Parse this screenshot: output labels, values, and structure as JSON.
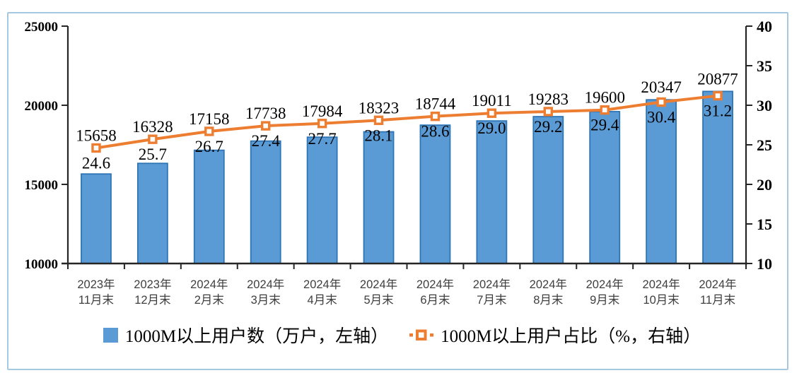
{
  "panel": {
    "background": "#FFFFFF",
    "border_color": "#A6C9E2"
  },
  "chart_data": {
    "type": "bar+line",
    "title": "",
    "categories": [
      [
        "2023年",
        "11月末"
      ],
      [
        "2023年",
        "12月末"
      ],
      [
        "2024年",
        "2月末"
      ],
      [
        "2024年",
        "3月末"
      ],
      [
        "2024年",
        "4月末"
      ],
      [
        "2024年",
        "5月末"
      ],
      [
        "2024年",
        "6月末"
      ],
      [
        "2024年",
        "7月末"
      ],
      [
        "2024年",
        "8月末"
      ],
      [
        "2024年",
        "9月末"
      ],
      [
        "2024年",
        "10月末"
      ],
      [
        "2024年",
        "11月末"
      ]
    ],
    "series": [
      {
        "name": "1000M以上用户数（万户，左轴）",
        "type": "bar",
        "axis": "left",
        "values": [
          15658,
          16328,
          17158,
          17738,
          17984,
          18323,
          18744,
          19011,
          19283,
          19600,
          20347,
          20877
        ],
        "labels": [
          "15658",
          "16328",
          "17158",
          "17738",
          "17984",
          "18323",
          "18744",
          "19011",
          "19283",
          "19600",
          "20347",
          "20877"
        ],
        "fill": "#5B9BD5",
        "stroke": "#2E75B6"
      },
      {
        "name": "1000M以上用户占比（%，右轴）",
        "type": "line",
        "axis": "right",
        "values": [
          24.6,
          25.7,
          26.7,
          27.4,
          27.7,
          28.1,
          28.6,
          29.0,
          29.2,
          29.4,
          30.4,
          31.2
        ],
        "labels": [
          "24.6",
          "25.7",
          "26.7",
          "27.4",
          "27.7",
          "28.1",
          "28.6",
          "29.0",
          "29.2",
          "29.4",
          "30.4",
          "31.2"
        ],
        "color": "#ED7D31",
        "marker": "open-square"
      }
    ],
    "left_axis": {
      "min": 10000,
      "max": 25000,
      "step": 5000,
      "ticks": [
        "25000",
        "20000",
        "15000",
        "10000"
      ]
    },
    "right_axis": {
      "min": 10,
      "max": 40,
      "step": 5,
      "ticks": [
        "40",
        "35",
        "30",
        "25",
        "20",
        "15",
        "10"
      ]
    },
    "grid": false,
    "legend_position": "bottom"
  },
  "legend": {
    "items": [
      {
        "label": "1000M以上用户数（万户，左轴）",
        "swatch": "bar"
      },
      {
        "label": "1000M以上用户占比（%，右轴）",
        "swatch": "line-marker"
      }
    ]
  },
  "styles": {
    "axis_color": "#262626",
    "tick_label_color": "#000000",
    "category_label_color": "#3F3F3F",
    "data_label_color": "#000000"
  }
}
